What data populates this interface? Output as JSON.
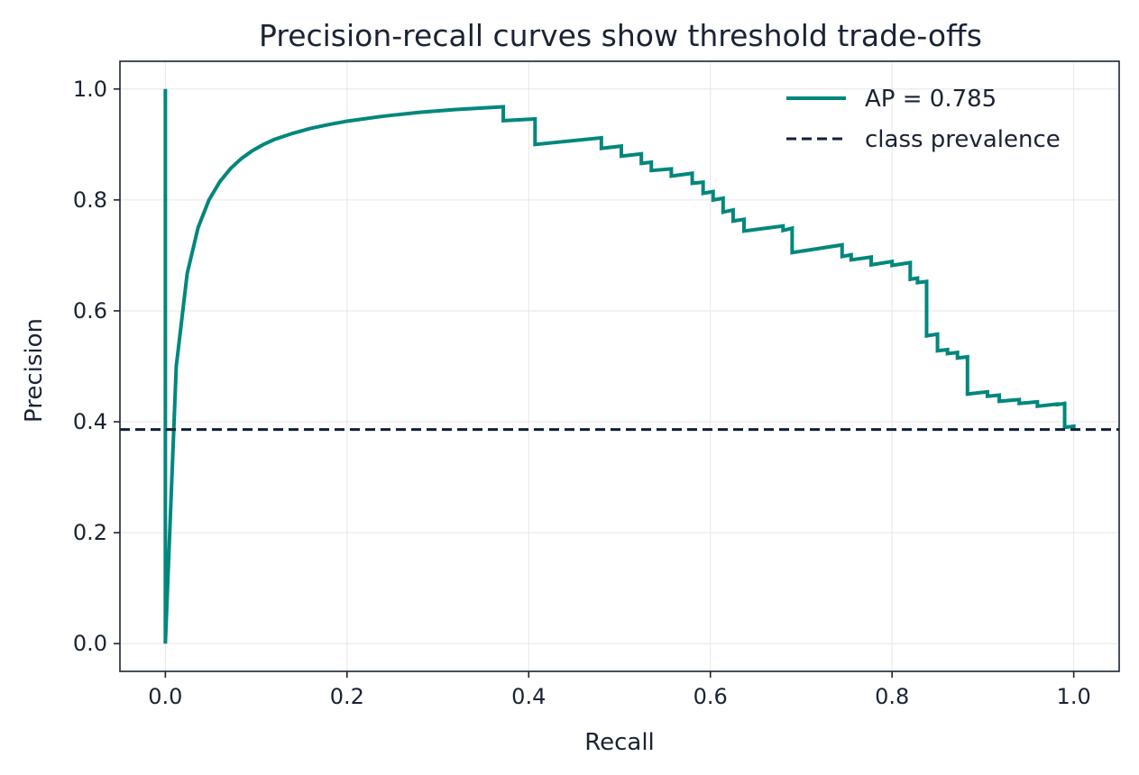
{
  "chart_data": {
    "type": "line",
    "title": "Precision-recall curves show threshold trade-offs",
    "xlabel": "Recall",
    "ylabel": "Precision",
    "xlim": [
      -0.05,
      1.05
    ],
    "ylim": [
      -0.05,
      1.05
    ],
    "x_ticks": [
      0.0,
      0.2,
      0.4,
      0.6,
      0.8,
      1.0
    ],
    "y_ticks": [
      0.0,
      0.2,
      0.4,
      0.6,
      0.8,
      1.0
    ],
    "x_tick_labels": [
      "0.0",
      "0.2",
      "0.4",
      "0.6",
      "0.8",
      "1.0"
    ],
    "y_tick_labels": [
      "0.0",
      "0.2",
      "0.4",
      "0.6",
      "0.8",
      "1.0"
    ],
    "grid": true,
    "legend_position": "top-right",
    "series": [
      {
        "name": "AP = 0.785",
        "color": "#00877d",
        "style": "solid",
        "step": true,
        "points": [
          [
            0.0,
            1.0
          ],
          [
            0.0,
            0.0
          ],
          [
            0.012,
            0.5
          ],
          [
            0.024,
            0.667
          ],
          [
            0.036,
            0.75
          ],
          [
            0.048,
            0.8
          ],
          [
            0.06,
            0.833
          ],
          [
            0.072,
            0.857
          ],
          [
            0.084,
            0.875
          ],
          [
            0.096,
            0.889
          ],
          [
            0.108,
            0.9
          ],
          [
            0.12,
            0.909
          ],
          [
            0.14,
            0.92
          ],
          [
            0.16,
            0.929
          ],
          [
            0.18,
            0.936
          ],
          [
            0.2,
            0.942
          ],
          [
            0.24,
            0.951
          ],
          [
            0.28,
            0.958
          ],
          [
            0.32,
            0.963
          ],
          [
            0.372,
            0.968
          ],
          [
            0.372,
            0.943
          ],
          [
            0.407,
            0.946
          ],
          [
            0.407,
            0.9
          ],
          [
            0.48,
            0.912
          ],
          [
            0.48,
            0.893
          ],
          [
            0.502,
            0.897
          ],
          [
            0.502,
            0.879
          ],
          [
            0.524,
            0.883
          ],
          [
            0.524,
            0.866
          ],
          [
            0.535,
            0.868
          ],
          [
            0.535,
            0.853
          ],
          [
            0.557,
            0.856
          ],
          [
            0.557,
            0.843
          ],
          [
            0.58,
            0.848
          ],
          [
            0.58,
            0.83
          ],
          [
            0.592,
            0.832
          ],
          [
            0.592,
            0.812
          ],
          [
            0.603,
            0.815
          ],
          [
            0.603,
            0.8
          ],
          [
            0.614,
            0.803
          ],
          [
            0.614,
            0.778
          ],
          [
            0.625,
            0.782
          ],
          [
            0.625,
            0.762
          ],
          [
            0.637,
            0.765
          ],
          [
            0.637,
            0.744
          ],
          [
            0.68,
            0.753
          ],
          [
            0.68,
            0.745
          ],
          [
            0.69,
            0.749
          ],
          [
            0.69,
            0.705
          ],
          [
            0.745,
            0.719
          ],
          [
            0.745,
            0.698
          ],
          [
            0.755,
            0.701
          ],
          [
            0.755,
            0.692
          ],
          [
            0.777,
            0.697
          ],
          [
            0.777,
            0.683
          ],
          [
            0.8,
            0.689
          ],
          [
            0.8,
            0.682
          ],
          [
            0.82,
            0.687
          ],
          [
            0.82,
            0.657
          ],
          [
            0.828,
            0.659
          ],
          [
            0.828,
            0.651
          ],
          [
            0.838,
            0.653
          ],
          [
            0.838,
            0.555
          ],
          [
            0.85,
            0.558
          ],
          [
            0.85,
            0.528
          ],
          [
            0.861,
            0.53
          ],
          [
            0.861,
            0.523
          ],
          [
            0.872,
            0.525
          ],
          [
            0.872,
            0.515
          ],
          [
            0.883,
            0.517
          ],
          [
            0.883,
            0.45
          ],
          [
            0.905,
            0.454
          ],
          [
            0.905,
            0.446
          ],
          [
            0.918,
            0.448
          ],
          [
            0.918,
            0.437
          ],
          [
            0.94,
            0.44
          ],
          [
            0.94,
            0.433
          ],
          [
            0.96,
            0.436
          ],
          [
            0.96,
            0.428
          ],
          [
            0.982,
            0.432
          ],
          [
            0.982,
            0.431
          ],
          [
            0.99,
            0.433
          ],
          [
            0.99,
            0.39
          ],
          [
            1.0,
            0.392
          ],
          [
            1.0,
            0.386
          ]
        ]
      },
      {
        "name": "class prevalence",
        "color": "#0f1f38",
        "style": "dashed",
        "y_constant": 0.386
      }
    ]
  }
}
